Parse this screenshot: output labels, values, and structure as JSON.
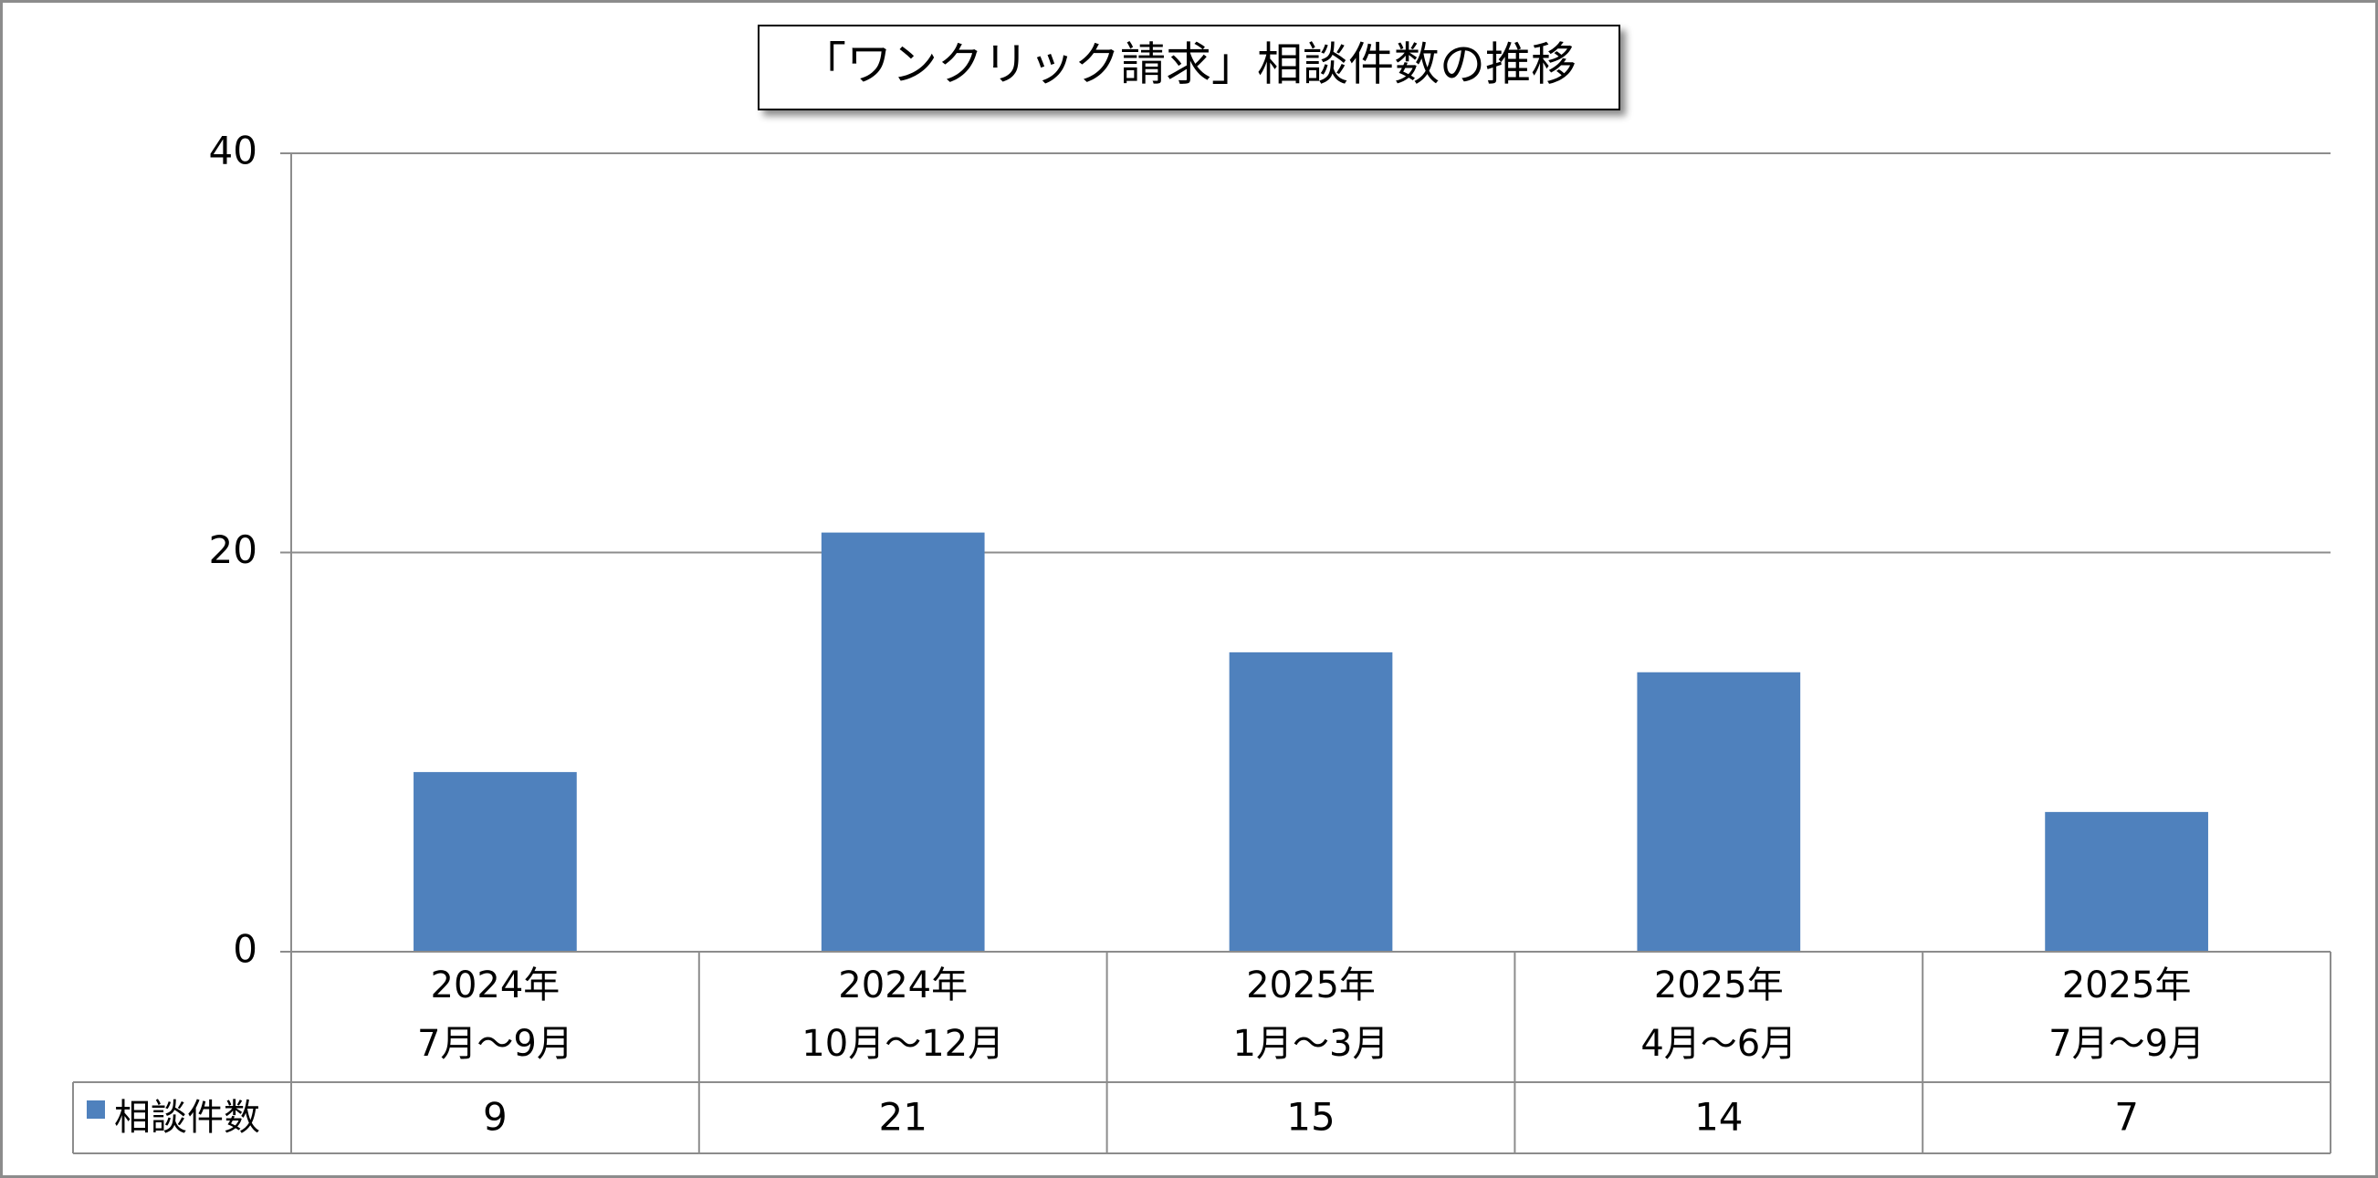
{
  "chart_data": {
    "type": "bar",
    "title": "「ワンクリック請求」相談件数の推移",
    "categories": [
      [
        "2024年",
        "7月～9月"
      ],
      [
        "2024年",
        "10月～12月"
      ],
      [
        "2025年",
        "1月～3月"
      ],
      [
        "2025年",
        "4月～6月"
      ],
      [
        "2025年",
        "7月～9月"
      ]
    ],
    "series": [
      {
        "name": "相談件数",
        "color": "#4f81bd",
        "values": [
          9,
          21,
          15,
          14,
          7
        ]
      }
    ],
    "ylim": [
      0,
      40
    ],
    "yticks": [
      0,
      20,
      40
    ],
    "grid": true,
    "data_table": true
  }
}
